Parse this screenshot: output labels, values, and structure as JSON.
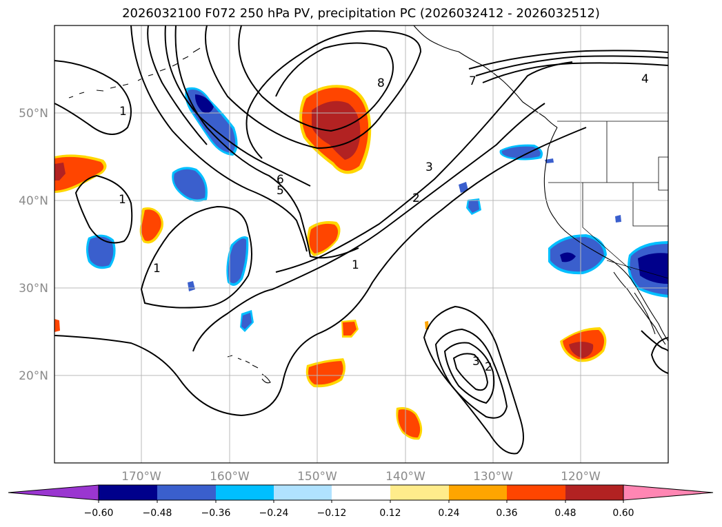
{
  "title": "2026032100 F072 250 hPa PV, precipitation PC (2026032412 - 2026032512)",
  "map": {
    "lat_labels": [
      "50°N",
      "40°N",
      "30°N",
      "20°N"
    ],
    "lon_labels": [
      "170°W",
      "160°W",
      "150°W",
      "140°W",
      "130°W",
      "120°W"
    ],
    "pv_contour_labels": [
      "1",
      "1",
      "1",
      "1",
      "2",
      "3",
      "4",
      "5",
      "6",
      "7",
      "8",
      "2",
      "3"
    ]
  },
  "colorbar": {
    "tick_labels": [
      "−0.60",
      "−0.48",
      "−0.36",
      "−0.24",
      "−0.12",
      "0.12",
      "0.24",
      "0.36",
      "0.48",
      "0.60"
    ],
    "colors": [
      "#9a36d0",
      "#00008b",
      "#3a5fcd",
      "#00bfff",
      "#b0e2ff",
      "#ffffff",
      "#ffec8b",
      "#ffa500",
      "#ff4500",
      "#b22222",
      "#ff86b3"
    ]
  }
}
